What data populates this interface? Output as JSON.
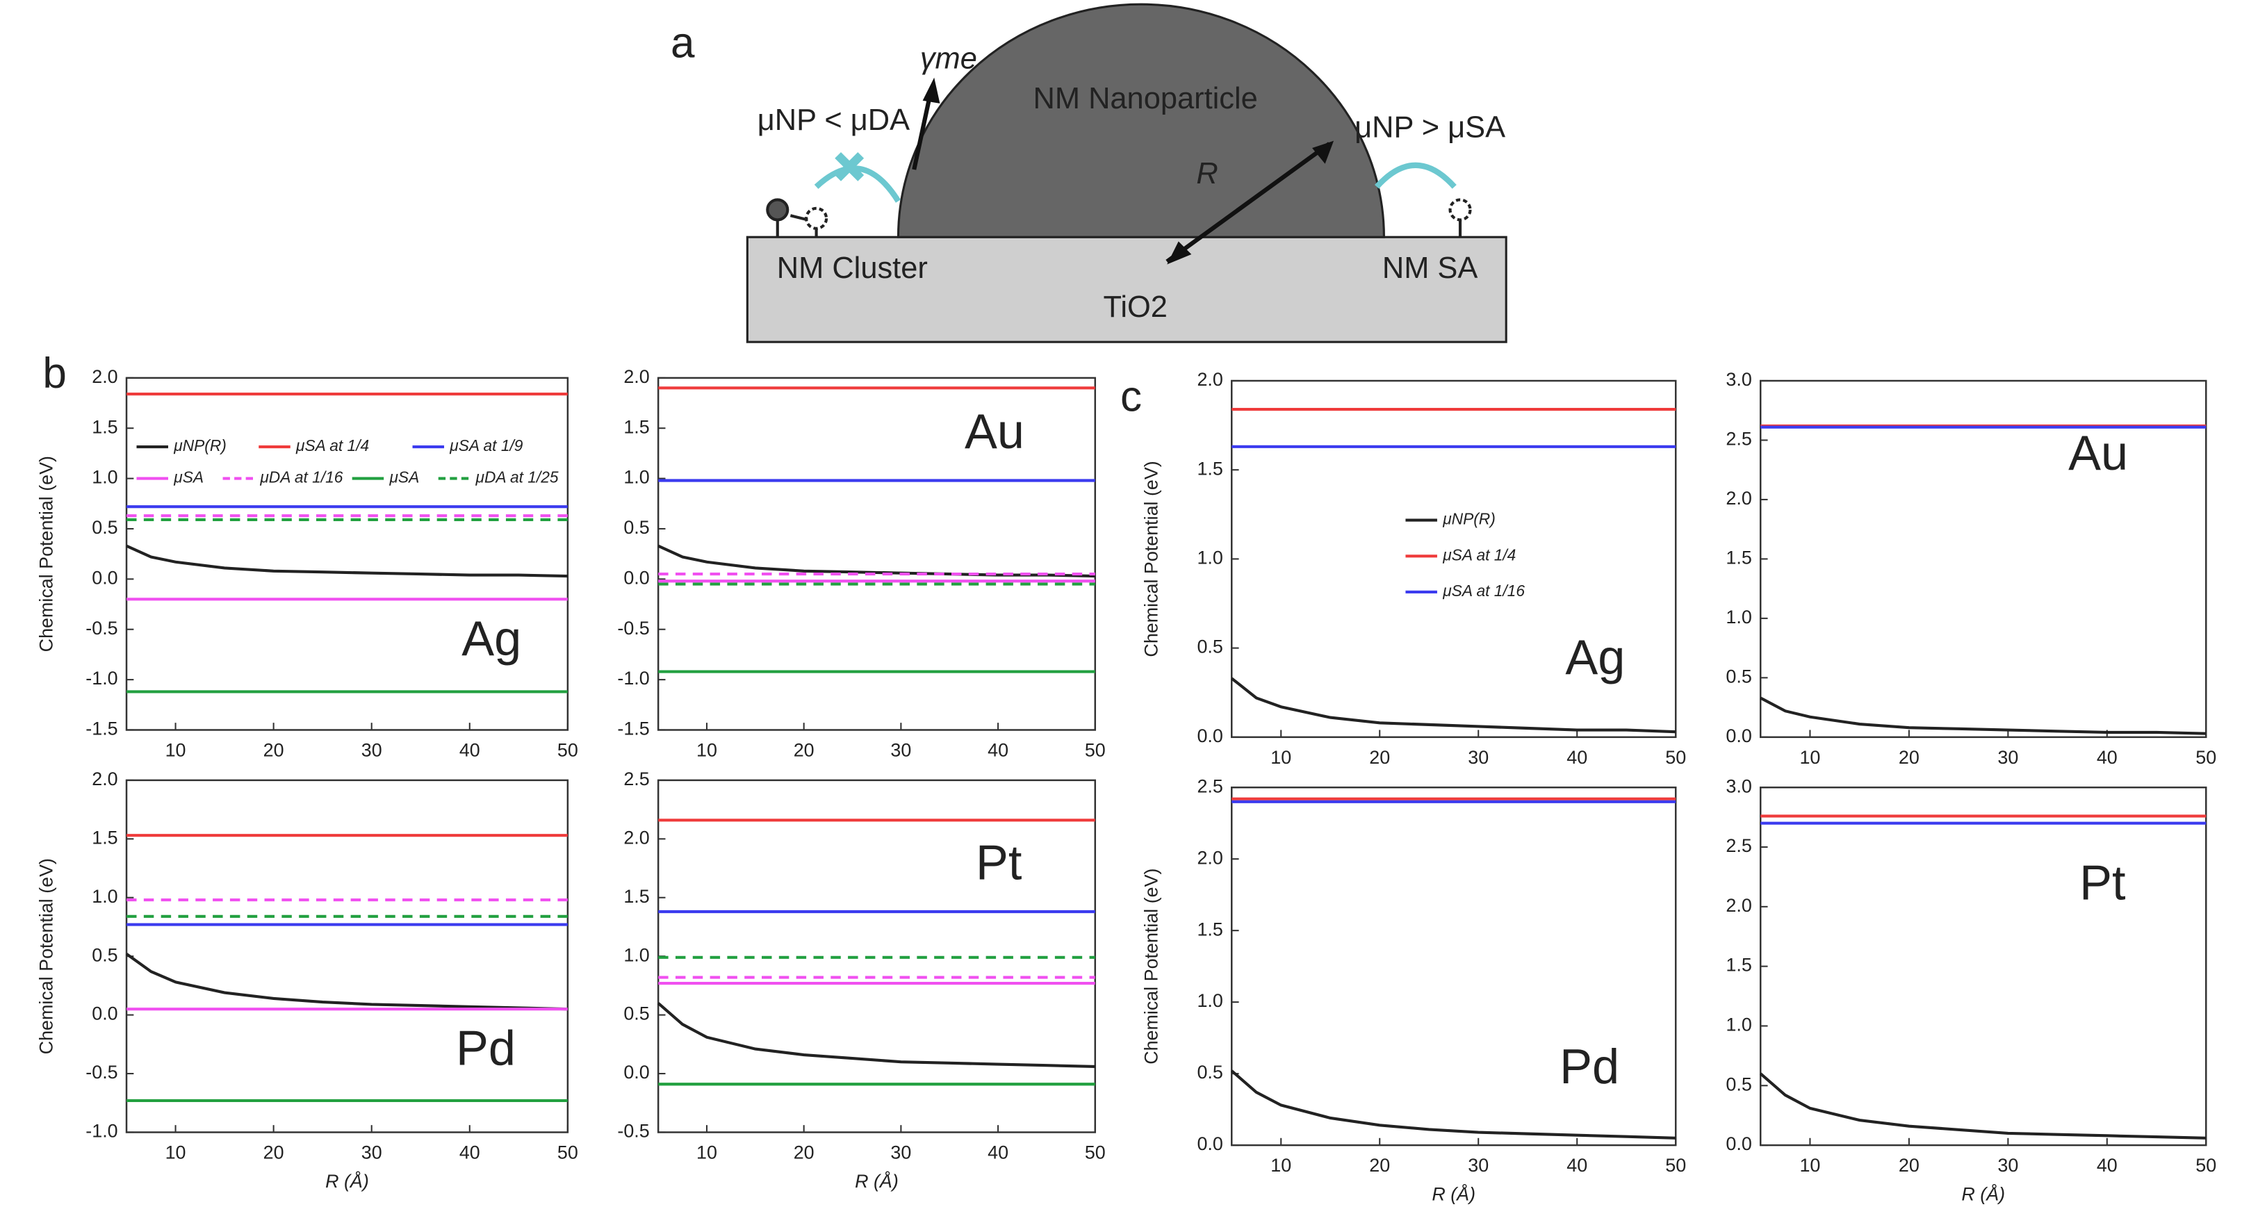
{
  "figure": {
    "panel_labels": [
      "a",
      "b",
      "c"
    ]
  },
  "diagram": {
    "nanoparticle": "NM Nanoparticle",
    "cluster": "NM Cluster",
    "single_atom": "NM SA",
    "support": "TiO2",
    "radius": "R",
    "surface_energy": "γme",
    "left_relation": "μNP < μDA",
    "right_relation": "μNP > μSA"
  },
  "chart_data": [
    {
      "type": "line",
      "ylabel": "Chemical Potential (eV)",
      "annotation": "Ag",
      "legend": "top",
      "xlim": [
        5,
        50
      ],
      "xticks": [
        10,
        20,
        30,
        40,
        50
      ],
      "ylim": [
        -1.5,
        2
      ],
      "yticks": [
        -1.5,
        {
          "value": -1,
          "label": "-1.0"
        },
        -0.5,
        {
          "value": 0,
          "label": "0.0"
        },
        0.5,
        {
          "value": 1,
          "label": "1.0"
        },
        1.5,
        {
          "value": 2,
          "label": "2.0"
        }
      ],
      "x": [
        5,
        7.5,
        10,
        15,
        20,
        25,
        30,
        35,
        40,
        45,
        50
      ],
      "series": [
        {
          "name": "μNP(R)",
          "color": "#222222",
          "values": [
            0.33,
            0.22,
            0.17,
            0.11,
            0.08,
            0.07,
            0.06,
            0.05,
            0.04,
            0.04,
            0.03
          ]
        },
        {
          "name": "μSA at 1/4",
          "color": "#ef3b3b",
          "values": [
            1.84,
            1.84,
            1.84,
            1.84,
            1.84,
            1.84,
            1.84,
            1.84,
            1.84,
            1.84,
            1.84
          ]
        },
        {
          "name": "μSA at 1/9",
          "color": "#3b3bef",
          "values": [
            0.72,
            0.72,
            0.72,
            0.72,
            0.72,
            0.72,
            0.72,
            0.72,
            0.72,
            0.72,
            0.72
          ]
        },
        {
          "name": "μSA",
          "color": "#f050f0",
          "values": [
            -0.2,
            -0.2,
            -0.2,
            -0.2,
            -0.2,
            -0.2,
            -0.2,
            -0.2,
            -0.2,
            -0.2,
            -0.2
          ]
        },
        {
          "name": "μDA at 1/16",
          "color": "#f050f0",
          "dashed": true,
          "values": [
            0.63,
            0.63,
            0.63,
            0.63,
            0.63,
            0.63,
            0.63,
            0.63,
            0.63,
            0.63,
            0.63
          ]
        },
        {
          "name": "μSA",
          "color": "#22a040",
          "values": [
            -1.12,
            -1.12,
            -1.12,
            -1.12,
            -1.12,
            -1.12,
            -1.12,
            -1.12,
            -1.12,
            -1.12,
            -1.12
          ]
        },
        {
          "name": "μDA at 1/25",
          "color": "#22a040",
          "dashed": true,
          "values": [
            0.59,
            0.59,
            0.59,
            0.59,
            0.59,
            0.59,
            0.59,
            0.59,
            0.59,
            0.59,
            0.59
          ]
        }
      ]
    },
    {
      "type": "line",
      "annotation": "Au",
      "xlim": [
        5,
        50
      ],
      "xticks": [
        10,
        20,
        30,
        40,
        50
      ],
      "ylim": [
        -1.5,
        2
      ],
      "yticks": [
        -1.5,
        {
          "value": -1,
          "label": "-1.0"
        },
        -0.5,
        {
          "value": 0,
          "label": "0.0"
        },
        0.5,
        {
          "value": 1,
          "label": "1.0"
        },
        1.5,
        {
          "value": 2,
          "label": "2.0"
        }
      ],
      "x": [
        5,
        7.5,
        10,
        15,
        20,
        25,
        30,
        35,
        40,
        45,
        50
      ],
      "series": [
        {
          "color": "#222222",
          "values": [
            0.33,
            0.22,
            0.17,
            0.11,
            0.08,
            0.07,
            0.06,
            0.05,
            0.04,
            0.04,
            0.03
          ]
        },
        {
          "color": "#ef3b3b",
          "values": [
            1.9,
            1.9,
            1.9,
            1.9,
            1.9,
            1.9,
            1.9,
            1.9,
            1.9,
            1.9,
            1.9
          ]
        },
        {
          "color": "#3b3bef",
          "values": [
            0.98,
            0.98,
            0.98,
            0.98,
            0.98,
            0.98,
            0.98,
            0.98,
            0.98,
            0.98,
            0.98
          ]
        },
        {
          "color": "#f050f0",
          "values": [
            -0.02,
            -0.02,
            -0.02,
            -0.02,
            -0.02,
            -0.02,
            -0.02,
            -0.02,
            -0.02,
            -0.02,
            -0.02
          ]
        },
        {
          "color": "#f050f0",
          "dashed": true,
          "values": [
            0.05,
            0.05,
            0.05,
            0.05,
            0.05,
            0.05,
            0.05,
            0.05,
            0.05,
            0.05,
            0.05
          ]
        },
        {
          "color": "#22a040",
          "values": [
            -0.92,
            -0.92,
            -0.92,
            -0.92,
            -0.92,
            -0.92,
            -0.92,
            -0.92,
            -0.92,
            -0.92,
            -0.92
          ]
        },
        {
          "color": "#22a040",
          "dashed": true,
          "values": [
            -0.05,
            -0.05,
            -0.05,
            -0.05,
            -0.05,
            -0.05,
            -0.05,
            -0.05,
            -0.05,
            -0.05,
            -0.05
          ]
        }
      ]
    },
    {
      "type": "line",
      "ylabel": "Chemical Potential (eV)",
      "xlabel": "R (Å)",
      "annotation": "Pd",
      "xlim": [
        5,
        50
      ],
      "xticks": [
        10,
        20,
        30,
        40,
        50
      ],
      "ylim": [
        -1,
        2
      ],
      "yticks": [
        {
          "value": -1,
          "label": "-1.0"
        },
        -0.5,
        {
          "value": 0,
          "label": "0.0"
        },
        0.5,
        {
          "value": 1,
          "label": "1.0"
        },
        1.5,
        {
          "value": 2,
          "label": "2.0"
        }
      ],
      "x": [
        5,
        7.5,
        10,
        15,
        20,
        25,
        30,
        35,
        40,
        45,
        50
      ],
      "series": [
        {
          "color": "#222222",
          "values": [
            0.52,
            0.37,
            0.28,
            0.19,
            0.14,
            0.11,
            0.09,
            0.08,
            0.07,
            0.06,
            0.05
          ]
        },
        {
          "color": "#ef3b3b",
          "values": [
            1.53,
            1.53,
            1.53,
            1.53,
            1.53,
            1.53,
            1.53,
            1.53,
            1.53,
            1.53,
            1.53
          ]
        },
        {
          "color": "#3b3bef",
          "values": [
            0.77,
            0.77,
            0.77,
            0.77,
            0.77,
            0.77,
            0.77,
            0.77,
            0.77,
            0.77,
            0.77
          ]
        },
        {
          "color": "#f050f0",
          "values": [
            0.05,
            0.05,
            0.05,
            0.05,
            0.05,
            0.05,
            0.05,
            0.05,
            0.05,
            0.05,
            0.05
          ]
        },
        {
          "color": "#f050f0",
          "dashed": true,
          "values": [
            0.98,
            0.98,
            0.98,
            0.98,
            0.98,
            0.98,
            0.98,
            0.98,
            0.98,
            0.98,
            0.98
          ]
        },
        {
          "color": "#22a040",
          "values": [
            -0.73,
            -0.73,
            -0.73,
            -0.73,
            -0.73,
            -0.73,
            -0.73,
            -0.73,
            -0.73,
            -0.73,
            -0.73
          ]
        },
        {
          "color": "#22a040",
          "dashed": true,
          "values": [
            0.84,
            0.84,
            0.84,
            0.84,
            0.84,
            0.84,
            0.84,
            0.84,
            0.84,
            0.84,
            0.84
          ]
        }
      ]
    },
    {
      "type": "line",
      "xlabel": "R (Å)",
      "annotation": "Pt",
      "xlim": [
        5,
        50
      ],
      "xticks": [
        10,
        20,
        30,
        40,
        50
      ],
      "ylim": [
        -0.5,
        2.5
      ],
      "yticks": [
        -0.5,
        {
          "value": 0,
          "label": "0.0"
        },
        0.5,
        {
          "value": 1,
          "label": "1.0"
        },
        1.5,
        {
          "value": 2,
          "label": "2.0"
        },
        2.5
      ],
      "x": [
        5,
        7.5,
        10,
        15,
        20,
        25,
        30,
        35,
        40,
        45,
        50
      ],
      "series": [
        {
          "color": "#222222",
          "values": [
            0.6,
            0.42,
            0.31,
            0.21,
            0.16,
            0.13,
            0.1,
            0.09,
            0.08,
            0.07,
            0.06
          ]
        },
        {
          "color": "#ef3b3b",
          "values": [
            2.16,
            2.16,
            2.16,
            2.16,
            2.16,
            2.16,
            2.16,
            2.16,
            2.16,
            2.16,
            2.16
          ]
        },
        {
          "color": "#3b3bef",
          "values": [
            1.38,
            1.38,
            1.38,
            1.38,
            1.38,
            1.38,
            1.38,
            1.38,
            1.38,
            1.38,
            1.38
          ]
        },
        {
          "color": "#f050f0",
          "values": [
            0.77,
            0.77,
            0.77,
            0.77,
            0.77,
            0.77,
            0.77,
            0.77,
            0.77,
            0.77,
            0.77
          ]
        },
        {
          "color": "#f050f0",
          "dashed": true,
          "values": [
            0.82,
            0.82,
            0.82,
            0.82,
            0.82,
            0.82,
            0.82,
            0.82,
            0.82,
            0.82,
            0.82
          ]
        },
        {
          "color": "#22a040",
          "values": [
            -0.09,
            -0.09,
            -0.09,
            -0.09,
            -0.09,
            -0.09,
            -0.09,
            -0.09,
            -0.09,
            -0.09,
            -0.09
          ]
        },
        {
          "color": "#22a040",
          "dashed": true,
          "values": [
            0.99,
            0.99,
            0.99,
            0.99,
            0.99,
            0.99,
            0.99,
            0.99,
            0.99,
            0.99,
            0.99
          ]
        }
      ]
    },
    {
      "type": "line",
      "ylabel": "Chemical Potential (eV)",
      "annotation": "Ag",
      "legend": "center",
      "xlim": [
        5,
        50
      ],
      "xticks": [
        10,
        20,
        30,
        40,
        50
      ],
      "ylim": [
        0,
        2
      ],
      "yticks": [
        {
          "value": 0,
          "label": "0.0"
        },
        0.5,
        {
          "value": 1,
          "label": "1.0"
        },
        1.5,
        {
          "value": 2,
          "label": "2.0"
        }
      ],
      "x": [
        5,
        7.5,
        10,
        15,
        20,
        25,
        30,
        35,
        40,
        45,
        50
      ],
      "series": [
        {
          "name": "μNP(R)",
          "color": "#222222",
          "values": [
            0.33,
            0.22,
            0.17,
            0.11,
            0.08,
            0.07,
            0.06,
            0.05,
            0.04,
            0.04,
            0.03
          ]
        },
        {
          "name": "μSA at 1/4",
          "color": "#ef3b3b",
          "values": [
            1.84,
            1.84,
            1.84,
            1.84,
            1.84,
            1.84,
            1.84,
            1.84,
            1.84,
            1.84,
            1.84
          ]
        },
        {
          "name": "μSA at 1/16",
          "color": "#3b3bef",
          "values": [
            1.63,
            1.63,
            1.63,
            1.63,
            1.63,
            1.63,
            1.63,
            1.63,
            1.63,
            1.63,
            1.63
          ]
        }
      ]
    },
    {
      "type": "line",
      "annotation": "Au",
      "xlim": [
        5,
        50
      ],
      "xticks": [
        10,
        20,
        30,
        40,
        50
      ],
      "ylim": [
        0,
        3
      ],
      "yticks": [
        {
          "value": 0,
          "label": "0.0"
        },
        0.5,
        {
          "value": 1,
          "label": "1.0"
        },
        1.5,
        {
          "value": 2,
          "label": "2.0"
        },
        2.5,
        {
          "value": 3,
          "label": "3.0"
        }
      ],
      "x": [
        5,
        7.5,
        10,
        15,
        20,
        25,
        30,
        35,
        40,
        45,
        50
      ],
      "series": [
        {
          "color": "#222222",
          "values": [
            0.33,
            0.22,
            0.17,
            0.11,
            0.08,
            0.07,
            0.06,
            0.05,
            0.04,
            0.04,
            0.03
          ]
        },
        {
          "color": "#ef3b3b",
          "values": [
            2.62,
            2.62,
            2.62,
            2.62,
            2.62,
            2.62,
            2.62,
            2.62,
            2.62,
            2.62,
            2.62
          ]
        },
        {
          "color": "#3b3bef",
          "values": [
            2.61,
            2.61,
            2.61,
            2.61,
            2.61,
            2.61,
            2.61,
            2.61,
            2.61,
            2.61,
            2.61
          ]
        }
      ]
    },
    {
      "type": "line",
      "ylabel": "Chemical Potential (eV)",
      "xlabel": "R (Å)",
      "annotation": "Pd",
      "xlim": [
        5,
        50
      ],
      "xticks": [
        10,
        20,
        30,
        40,
        50
      ],
      "ylim": [
        0,
        2.5
      ],
      "yticks": [
        {
          "value": 0,
          "label": "0.0"
        },
        0.5,
        {
          "value": 1,
          "label": "1.0"
        },
        1.5,
        {
          "value": 2,
          "label": "2.0"
        },
        2.5
      ],
      "x": [
        5,
        7.5,
        10,
        15,
        20,
        25,
        30,
        35,
        40,
        45,
        50
      ],
      "series": [
        {
          "color": "#222222",
          "values": [
            0.52,
            0.37,
            0.28,
            0.19,
            0.14,
            0.11,
            0.09,
            0.08,
            0.07,
            0.06,
            0.05
          ]
        },
        {
          "color": "#ef3b3b",
          "values": [
            2.42,
            2.42,
            2.42,
            2.42,
            2.42,
            2.42,
            2.42,
            2.42,
            2.42,
            2.42,
            2.42
          ]
        },
        {
          "color": "#3b3bef",
          "values": [
            2.4,
            2.4,
            2.4,
            2.4,
            2.4,
            2.4,
            2.4,
            2.4,
            2.4,
            2.4,
            2.4
          ]
        }
      ]
    },
    {
      "type": "line",
      "xlabel": "R (Å)",
      "annotation": "Pt",
      "xlim": [
        5,
        50
      ],
      "xticks": [
        10,
        20,
        30,
        40,
        50
      ],
      "ylim": [
        0,
        3
      ],
      "yticks": [
        {
          "value": 0,
          "label": "0.0"
        },
        0.5,
        {
          "value": 1,
          "label": "1.0"
        },
        1.5,
        {
          "value": 2,
          "label": "2.0"
        },
        2.5,
        {
          "value": 3,
          "label": "3.0"
        }
      ],
      "x": [
        5,
        7.5,
        10,
        15,
        20,
        25,
        30,
        35,
        40,
        45,
        50
      ],
      "series": [
        {
          "color": "#222222",
          "values": [
            0.6,
            0.42,
            0.31,
            0.21,
            0.16,
            0.13,
            0.1,
            0.09,
            0.08,
            0.07,
            0.06
          ]
        },
        {
          "color": "#ef3b3b",
          "values": [
            2.76,
            2.76,
            2.76,
            2.76,
            2.76,
            2.76,
            2.76,
            2.76,
            2.76,
            2.76,
            2.76
          ]
        },
        {
          "color": "#3b3bef",
          "values": [
            2.7,
            2.7,
            2.7,
            2.7,
            2.7,
            2.7,
            2.7,
            2.7,
            2.7,
            2.7,
            2.7
          ]
        }
      ]
    }
  ]
}
